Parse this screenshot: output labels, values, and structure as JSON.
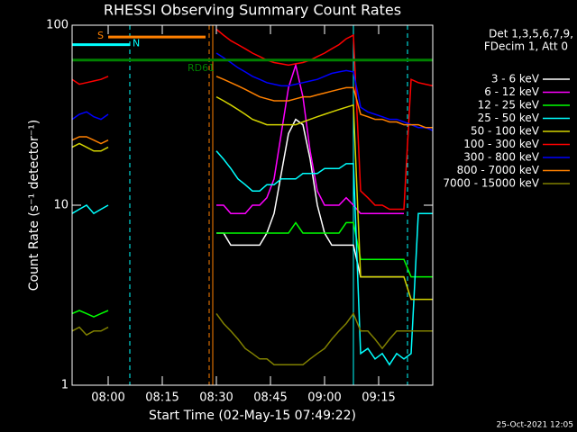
{
  "chart_data": {
    "type": "line",
    "title": "RHESSI Observing Summary Count Rates",
    "x_label": "Start Time (02-May-15 07:49:22)",
    "y_label": "Count Rate (s⁻¹ detector⁻¹)",
    "legend_header": [
      "Det 1,3,5,6,7,9,",
      "FDecim 1, Att 0"
    ],
    "footer": "25-Oct-2021 12:05",
    "log_y": true,
    "ylim": [
      1,
      100
    ],
    "yticks": [
      1,
      10,
      100
    ],
    "xlim": [
      "07:50",
      "09:30"
    ],
    "xticks": [
      "08:00",
      "08:15",
      "08:30",
      "08:45",
      "09:00",
      "09:15"
    ],
    "x": [
      "07:50",
      "07:52",
      "07:54",
      "07:56",
      "07:58",
      "08:00",
      "08:02",
      "08:04",
      "08:06",
      "08:08",
      "08:10",
      "08:12",
      "08:14",
      "08:16",
      "08:18",
      "08:20",
      "08:22",
      "08:24",
      "08:26",
      "08:28",
      "08:30",
      "08:32",
      "08:34",
      "08:36",
      "08:38",
      "08:40",
      "08:42",
      "08:44",
      "08:46",
      "08:48",
      "08:50",
      "08:52",
      "08:54",
      "08:56",
      "08:58",
      "09:00",
      "09:02",
      "09:04",
      "09:06",
      "09:08",
      "09:10",
      "09:12",
      "09:14",
      "09:16",
      "09:18",
      "09:20",
      "09:22",
      "09:24",
      "09:26",
      "09:28",
      "09:30"
    ],
    "series": [
      {
        "name": "3 - 6 keV",
        "color": "#ffffff",
        "values": [
          null,
          null,
          null,
          null,
          null,
          null,
          null,
          null,
          null,
          null,
          null,
          null,
          null,
          null,
          null,
          null,
          null,
          null,
          null,
          null,
          7,
          7,
          6,
          6,
          6,
          6,
          6,
          7,
          9,
          15,
          25,
          30,
          28,
          18,
          10,
          7,
          6,
          6,
          6,
          6,
          4,
          4,
          4,
          4,
          4,
          4,
          4,
          null,
          null,
          null,
          null
        ]
      },
      {
        "name": "6 - 12 keV",
        "color": "#ff00ff",
        "values": [
          null,
          null,
          null,
          null,
          null,
          null,
          null,
          null,
          null,
          null,
          null,
          null,
          null,
          null,
          null,
          null,
          null,
          null,
          null,
          null,
          10,
          10,
          9,
          9,
          9,
          10,
          10,
          11,
          14,
          25,
          45,
          60,
          40,
          20,
          12,
          10,
          10,
          10,
          11,
          10,
          9,
          9,
          9,
          9,
          9,
          9,
          9,
          null,
          null,
          null,
          null
        ]
      },
      {
        "name": "12 - 25 keV",
        "color": "#00ff00",
        "values": [
          2.5,
          2.6,
          2.5,
          2.4,
          2.5,
          2.6,
          null,
          null,
          null,
          null,
          null,
          null,
          null,
          null,
          null,
          null,
          null,
          null,
          null,
          null,
          7,
          7,
          7,
          7,
          7,
          7,
          7,
          7,
          7,
          7,
          7,
          8,
          7,
          7,
          7,
          7,
          7,
          7,
          8,
          8,
          5,
          5,
          5,
          5,
          5,
          5,
          5,
          4,
          4,
          4,
          4
        ]
      },
      {
        "name": "25 - 50 keV",
        "color": "#00ffff",
        "values": [
          9,
          9.5,
          10,
          9,
          9.5,
          10,
          null,
          null,
          null,
          null,
          null,
          null,
          null,
          null,
          null,
          null,
          null,
          null,
          null,
          null,
          20,
          18,
          16,
          14,
          13,
          12,
          12,
          13,
          13,
          14,
          14,
          14,
          15,
          15,
          15,
          16,
          16,
          16,
          17,
          17,
          1.5,
          1.6,
          1.4,
          1.5,
          1.3,
          1.5,
          1.4,
          1.5,
          9,
          9,
          9
        ]
      },
      {
        "name": "50 - 100 keV",
        "color": "#d4d400",
        "values": [
          21,
          22,
          21,
          20,
          20,
          21,
          null,
          null,
          null,
          null,
          null,
          null,
          null,
          null,
          null,
          null,
          null,
          null,
          null,
          null,
          40,
          38,
          36,
          34,
          32,
          30,
          29,
          28,
          28,
          28,
          28,
          28,
          29,
          30,
          31,
          32,
          33,
          34,
          35,
          36,
          4,
          4,
          4,
          4,
          4,
          4,
          4,
          3,
          3,
          3,
          3
        ]
      },
      {
        "name": "100 - 300 keV",
        "color": "#ff0000",
        "values": [
          50,
          47,
          48,
          49,
          50,
          52,
          null,
          null,
          null,
          null,
          null,
          null,
          null,
          null,
          null,
          null,
          null,
          null,
          null,
          null,
          95,
          88,
          82,
          78,
          74,
          70,
          67,
          64,
          62,
          61,
          60,
          61,
          62,
          64,
          67,
          70,
          74,
          78,
          84,
          88,
          12,
          11,
          10,
          10,
          9.5,
          9.5,
          9.5,
          50,
          48,
          47,
          46
        ]
      },
      {
        "name": "300 - 800 keV",
        "color": "#0000ff",
        "values": [
          30,
          32,
          33,
          31,
          30,
          32,
          null,
          null,
          null,
          null,
          null,
          null,
          null,
          null,
          null,
          null,
          null,
          null,
          null,
          null,
          70,
          66,
          62,
          58,
          55,
          52,
          50,
          48,
          47,
          46,
          46,
          47,
          48,
          49,
          50,
          52,
          54,
          55,
          56,
          55,
          35,
          33,
          32,
          31,
          30,
          30,
          29,
          28,
          27,
          27,
          26
        ]
      },
      {
        "name": "800 - 7000 keV",
        "color": "#ff8000",
        "values": [
          23,
          24,
          24,
          23,
          22,
          23,
          null,
          null,
          null,
          null,
          null,
          null,
          null,
          null,
          null,
          null,
          null,
          null,
          null,
          null,
          52,
          50,
          48,
          46,
          44,
          42,
          40,
          39,
          38,
          38,
          38,
          39,
          40,
          40,
          41,
          42,
          43,
          44,
          45,
          45,
          32,
          31,
          30,
          30,
          29,
          29,
          28,
          28,
          28,
          27,
          27
        ]
      },
      {
        "name": "7000 - 15000 keV",
        "color": "#808000",
        "values": [
          2,
          2.1,
          1.9,
          2,
          2,
          2.1,
          null,
          null,
          null,
          null,
          null,
          null,
          null,
          null,
          null,
          null,
          null,
          null,
          null,
          null,
          2.5,
          2.2,
          2,
          1.8,
          1.6,
          1.5,
          1.4,
          1.4,
          1.3,
          1.3,
          1.3,
          1.3,
          1.3,
          1.4,
          1.5,
          1.6,
          1.8,
          2,
          2.2,
          2.5,
          2,
          2,
          1.8,
          1.6,
          1.8,
          2,
          2,
          2,
          2,
          2,
          2
        ]
      }
    ],
    "flags": [
      {
        "label": "S",
        "color": "#ff8000",
        "start": "08:00",
        "end": "08:27",
        "level": 86
      },
      {
        "label": "N",
        "color": "#00ffff",
        "start": "07:50",
        "end": "08:06",
        "level": 78
      },
      {
        "label": "RD61",
        "color": "#008000",
        "start": "07:50",
        "end": "09:30",
        "level": 64
      }
    ],
    "markers": [
      {
        "x": "08:06",
        "color": "#00ffff",
        "dashed": true
      },
      {
        "x": "08:28",
        "color": "#ff8000",
        "dashed": true
      },
      {
        "x": "08:29",
        "color": "#ff8000",
        "dashed": false
      },
      {
        "x": "09:08",
        "color": "#00ffff",
        "dashed": false
      },
      {
        "x": "09:23",
        "color": "#00ffff",
        "dashed": true
      }
    ]
  }
}
